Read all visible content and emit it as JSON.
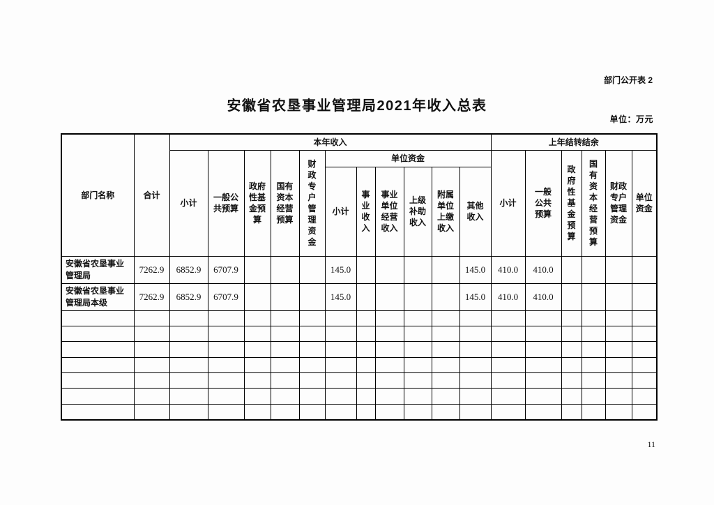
{
  "page": {
    "tag": "部门公开表 2",
    "title": "安徽省农垦事业管理局2021年收入总表",
    "unit_note": "单位：万元",
    "page_number": "11"
  },
  "table": {
    "header": {
      "dept_name": "部门名称",
      "total": "合计",
      "current_year_income": "本年收入",
      "carryover_balance": "上年结转结余",
      "cy": {
        "subtotal": "小计",
        "general_public_budget": "一般公\n共预算",
        "gov_fund_budget": "政府\n性基\n金预\n算",
        "state_capital_budget": "国有\n资本\n经营\n预算",
        "fiscal_special_account_funds": "财\n政\n专\n户\n管\n理\n资\n金",
        "unit_funds": "单位资金",
        "uf": {
          "subtotal": "小计",
          "operational_income": "事\n业\n收\n入",
          "unit_operating_income": "事业\n单位\n经营\n收入",
          "superior_subsidy_income": "上级\n补助\n收入",
          "affiliated_remitted_income": "附属\n单位\n上缴\n收入",
          "other_income": "其他\n收入"
        }
      },
      "co": {
        "subtotal": "小计",
        "general_public_budget": "一般\n公共\n预算",
        "gov_fund_budget": "政\n府\n性\n基\n金\n预\n算",
        "state_capital_budget": "国\n有\n资\n本\n经\n营\n预\n算",
        "fiscal_special_account_funds": "财政\n专户\n管理\n资金",
        "unit_funds": "单位\n资金"
      }
    },
    "rows": [
      [
        "安徽省农垦事业\n管理局",
        "7262.9",
        "6852.9",
        "6707.9",
        "",
        "",
        "",
        "145.0",
        "",
        "",
        "",
        "",
        "145.0",
        "410.0",
        "410.0",
        "",
        "",
        "",
        ""
      ],
      [
        "安徽省农垦事业\n管理局本级",
        "7262.9",
        "6852.9",
        "6707.9",
        "",
        "",
        "",
        "145.0",
        "",
        "",
        "",
        "",
        "145.0",
        "410.0",
        "410.0",
        "",
        "",
        "",
        ""
      ]
    ],
    "empty_rows": 7,
    "column_count": 19
  }
}
